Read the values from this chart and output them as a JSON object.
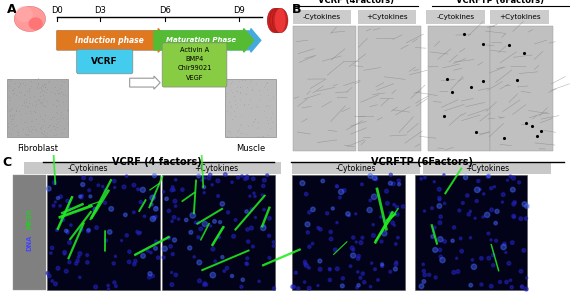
{
  "panel_A": {
    "label": "A",
    "timeline_days": [
      "D0",
      "D3",
      "D6",
      "D9"
    ],
    "arrow1_label": "Induction phase",
    "arrow1_color": "#E07820",
    "arrow2_label": "Maturation Phase",
    "arrow2_color": "#55BB33",
    "vcrf_box_label": "VCRF",
    "vcrf_box_color": "#44CCEE",
    "cytokine_box_lines": [
      "Activin A",
      "BMP4",
      "Chir99021",
      "VEGF"
    ],
    "cytokine_box_color": "#88CC44",
    "fibroblast_label": "Fibroblast",
    "muscle_label": "Muscle",
    "blue_arrow_color": "#44AADD"
  },
  "panel_B": {
    "label": "B",
    "group1_title": "VCRF (4Factors)",
    "group2_title": "VCRFTP (6Factors)",
    "col_labels": [
      "-Cytokines",
      "+Cytokines",
      "-Cytokines",
      "+Cytokines"
    ]
  },
  "panel_C": {
    "label": "C",
    "group1_title": "VCRF (4 factors)",
    "group2_title": "VCRFTP (6Factors)",
    "col_labels": [
      "-Cytokines",
      "+Cytokines",
      "-Cytokines",
      "+Cytokines"
    ],
    "side_label_green": "MF20",
    "side_label_blue": "DNA",
    "side_bg": "#808080"
  },
  "bg_color": "#ffffff"
}
